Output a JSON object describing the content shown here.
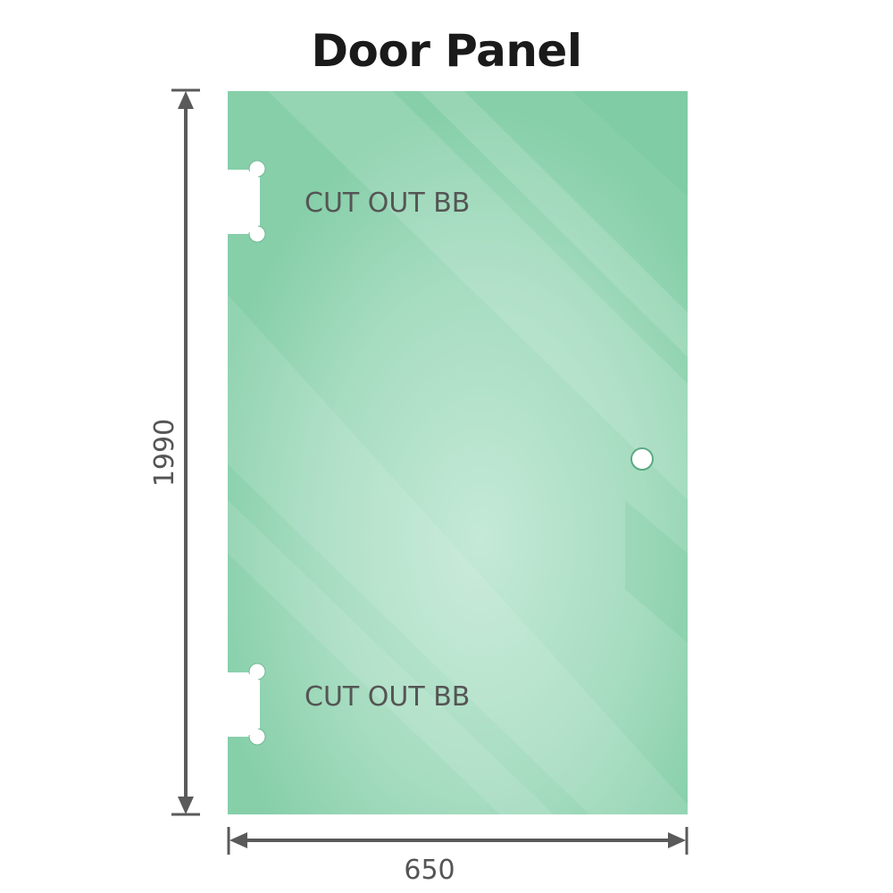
{
  "title": "Door Panel",
  "dimensions": {
    "height": "1990",
    "width": "650"
  },
  "cutouts": [
    {
      "label": "CUT OUT BB"
    },
    {
      "label": "CUT OUT BB"
    }
  ],
  "colors": {
    "glass": "#86cfa9",
    "glass_highlight": "#c2e8d5",
    "dimension_line": "#5a5a5a"
  }
}
